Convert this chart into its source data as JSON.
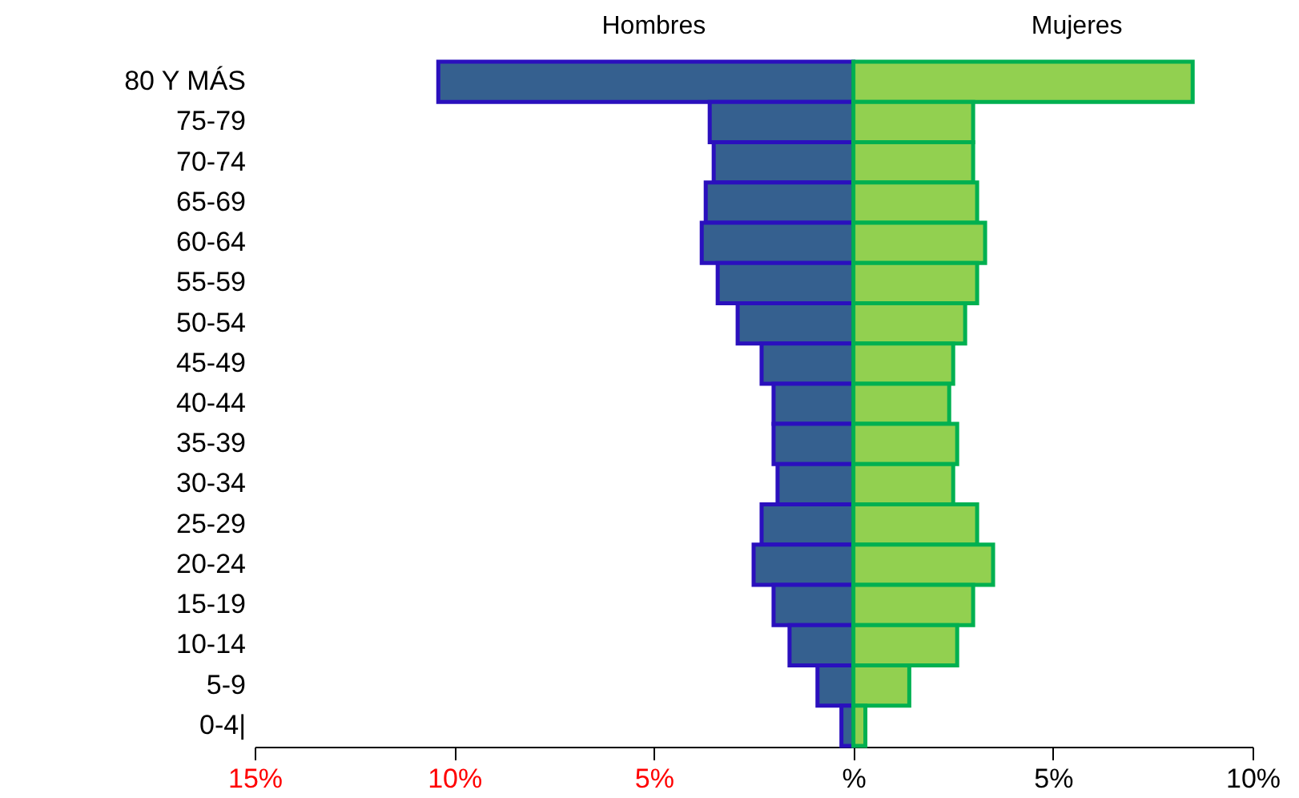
{
  "chart_data": {
    "type": "bar",
    "orientation": "horizontal",
    "categories": [
      "80 Y MÁS",
      "75-79",
      "70-74",
      "65-69",
      "60-64",
      "55-59",
      "50-54",
      "45-49",
      "40-44",
      "35-39",
      "30-34",
      "25-29",
      "20-24",
      "15-19",
      "10-14",
      "5-9",
      "0-4|"
    ],
    "series": [
      {
        "name": "Hombres",
        "color": "#35608f",
        "values": [
          -10.4,
          -3.6,
          -3.5,
          -3.7,
          -3.8,
          -3.4,
          -2.9,
          -2.3,
          -2.0,
          -2.0,
          -1.9,
          -2.3,
          -2.5,
          -2.0,
          -1.6,
          -0.9,
          -0.3
        ]
      },
      {
        "name": "Mujeres",
        "color": "#92d050",
        "values": [
          8.5,
          3.0,
          3.0,
          3.1,
          3.3,
          3.1,
          2.8,
          2.5,
          2.4,
          2.6,
          2.5,
          3.1,
          3.5,
          3.0,
          2.6,
          1.4,
          0.3
        ]
      }
    ],
    "xlim": [
      -15,
      10
    ],
    "xticks": [
      {
        "value": -15,
        "label": "15%"
      },
      {
        "value": -10,
        "label": "10%"
      },
      {
        "value": -5,
        "label": "5%"
      },
      {
        "value": 0,
        "label": "%"
      },
      {
        "value": 5,
        "label": "5%"
      },
      {
        "value": 10,
        "label": "10%"
      }
    ],
    "stacked": true,
    "grid": false,
    "legend": false
  }
}
